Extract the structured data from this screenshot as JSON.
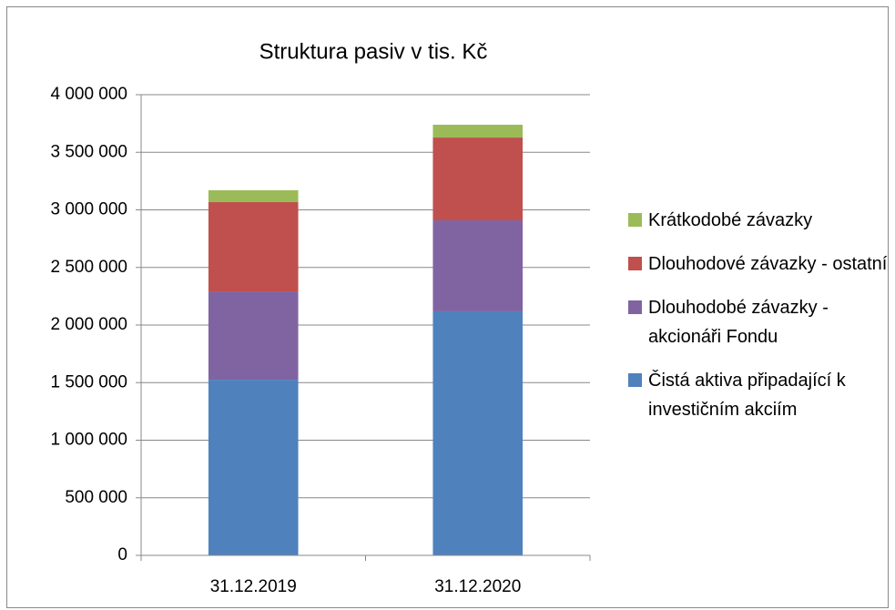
{
  "chart_data": {
    "type": "bar",
    "stacked": true,
    "title": "Struktura pasiv v tis. Kč",
    "categories": [
      "31.12.2019",
      "31.12.2020"
    ],
    "series": [
      {
        "name": "Čistá aktiva připadající k investičním akciím",
        "color": "#4f81bd",
        "values": [
          1525000,
          2119000
        ]
      },
      {
        "name": "Dlouhodobé závazky - akcionáři Fondu",
        "color": "#8064a2",
        "values": [
          767000,
          790000
        ]
      },
      {
        "name": "Dlouhodové závazky - ostatní",
        "color": "#c0504d",
        "values": [
          775000,
          719000
        ]
      },
      {
        "name": "Krátkodobé závazky",
        "color": "#9bbb59",
        "values": [
          103000,
          111000
        ]
      }
    ],
    "ylim": [
      0,
      4000000
    ],
    "yticks": [
      0,
      {
        "value": 500000,
        "label": "500 000"
      },
      {
        "value": 1000000,
        "label": "1 000 000"
      },
      {
        "value": 1500000,
        "label": "1 500 000"
      },
      {
        "value": 2000000,
        "label": "2 000 000"
      },
      {
        "value": 2500000,
        "label": "2 500 000"
      },
      {
        "value": 3000000,
        "label": "3 000 000"
      },
      {
        "value": 3500000,
        "label": "3 500 000"
      },
      {
        "value": 4000000,
        "label": "4 000 000"
      }
    ],
    "grid": true,
    "legend": "right"
  }
}
